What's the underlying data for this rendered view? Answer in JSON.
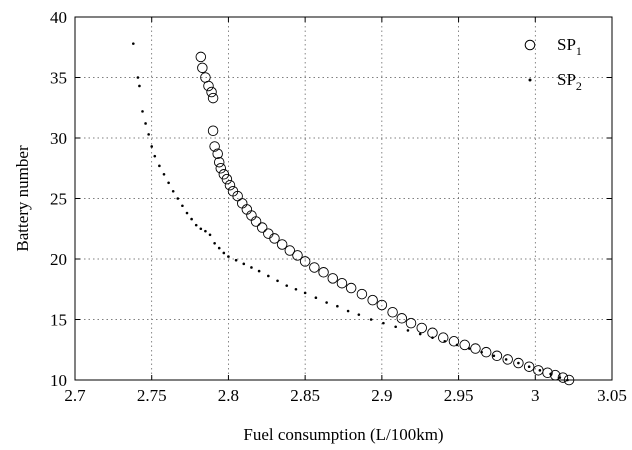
{
  "chart_data": {
    "type": "scatter",
    "title": "",
    "xlabel": "Fuel consumption (L/100km)",
    "ylabel": "Battery number",
    "xlim": [
      2.7,
      3.05
    ],
    "ylim": [
      10,
      40
    ],
    "xticks": [
      "2.7",
      "2.75",
      "2.8",
      "2.85",
      "2.9",
      "2.95",
      "3",
      "3.05"
    ],
    "yticks": [
      "10",
      "15",
      "20",
      "25",
      "30",
      "35",
      "40"
    ],
    "grid": true,
    "legend_position": "top-right",
    "series": [
      {
        "name": "SP1",
        "name_main": "SP",
        "name_sub": "1",
        "marker": "open-circle",
        "color": "#000000",
        "points": [
          [
            2.782,
            36.7
          ],
          [
            2.783,
            35.8
          ],
          [
            2.785,
            35.0
          ],
          [
            2.787,
            34.3
          ],
          [
            2.789,
            33.8
          ],
          [
            2.79,
            33.3
          ],
          [
            2.79,
            30.6
          ],
          [
            2.791,
            29.3
          ],
          [
            2.793,
            28.7
          ],
          [
            2.794,
            28.0
          ],
          [
            2.795,
            27.5
          ],
          [
            2.797,
            27.0
          ],
          [
            2.799,
            26.6
          ],
          [
            2.801,
            26.1
          ],
          [
            2.803,
            25.6
          ],
          [
            2.806,
            25.2
          ],
          [
            2.809,
            24.6
          ],
          [
            2.812,
            24.1
          ],
          [
            2.815,
            23.6
          ],
          [
            2.818,
            23.1
          ],
          [
            2.822,
            22.6
          ],
          [
            2.826,
            22.1
          ],
          [
            2.83,
            21.7
          ],
          [
            2.835,
            21.2
          ],
          [
            2.84,
            20.7
          ],
          [
            2.845,
            20.3
          ],
          [
            2.85,
            19.8
          ],
          [
            2.856,
            19.3
          ],
          [
            2.862,
            18.9
          ],
          [
            2.868,
            18.4
          ],
          [
            2.874,
            18.0
          ],
          [
            2.88,
            17.6
          ],
          [
            2.887,
            17.1
          ],
          [
            2.894,
            16.6
          ],
          [
            2.9,
            16.2
          ],
          [
            2.907,
            15.6
          ],
          [
            2.913,
            15.1
          ],
          [
            2.919,
            14.7
          ],
          [
            2.926,
            14.3
          ],
          [
            2.933,
            13.9
          ],
          [
            2.94,
            13.5
          ],
          [
            2.947,
            13.2
          ],
          [
            2.954,
            12.9
          ],
          [
            2.961,
            12.6
          ],
          [
            2.968,
            12.3
          ],
          [
            2.975,
            12.0
          ],
          [
            2.982,
            11.7
          ],
          [
            2.989,
            11.4
          ],
          [
            2.996,
            11.1
          ],
          [
            3.002,
            10.8
          ],
          [
            3.008,
            10.6
          ],
          [
            3.013,
            10.4
          ],
          [
            3.018,
            10.2
          ],
          [
            3.022,
            10.0
          ]
        ]
      },
      {
        "name": "SP2",
        "name_main": "SP",
        "name_sub": "2",
        "marker": "dot",
        "color": "#000000",
        "points": [
          [
            2.738,
            37.8
          ],
          [
            2.741,
            35.0
          ],
          [
            2.742,
            34.3
          ],
          [
            2.744,
            32.2
          ],
          [
            2.746,
            31.2
          ],
          [
            2.748,
            30.3
          ],
          [
            2.75,
            29.3
          ],
          [
            2.752,
            28.5
          ],
          [
            2.755,
            27.7
          ],
          [
            2.758,
            27.0
          ],
          [
            2.761,
            26.3
          ],
          [
            2.764,
            25.6
          ],
          [
            2.767,
            25.0
          ],
          [
            2.77,
            24.4
          ],
          [
            2.773,
            23.8
          ],
          [
            2.776,
            23.3
          ],
          [
            2.779,
            22.8
          ],
          [
            2.782,
            22.5
          ],
          [
            2.785,
            22.3
          ],
          [
            2.788,
            22.0
          ],
          [
            2.791,
            21.3
          ],
          [
            2.794,
            20.9
          ],
          [
            2.797,
            20.5
          ],
          [
            2.8,
            20.2
          ],
          [
            2.805,
            19.9
          ],
          [
            2.81,
            19.6
          ],
          [
            2.815,
            19.3
          ],
          [
            2.82,
            19.0
          ],
          [
            2.826,
            18.6
          ],
          [
            2.832,
            18.2
          ],
          [
            2.838,
            17.8
          ],
          [
            2.844,
            17.5
          ],
          [
            2.85,
            17.2
          ],
          [
            2.857,
            16.8
          ],
          [
            2.864,
            16.4
          ],
          [
            2.871,
            16.1
          ],
          [
            2.878,
            15.7
          ],
          [
            2.885,
            15.4
          ],
          [
            2.893,
            15.0
          ],
          [
            2.901,
            14.7
          ],
          [
            2.909,
            14.4
          ],
          [
            2.917,
            14.1
          ],
          [
            2.925,
            13.8
          ],
          [
            2.933,
            13.5
          ],
          [
            2.941,
            13.2
          ],
          [
            2.949,
            12.9
          ],
          [
            2.957,
            12.6
          ],
          [
            2.965,
            12.3
          ],
          [
            2.973,
            12.0
          ],
          [
            2.981,
            11.7
          ],
          [
            2.989,
            11.4
          ],
          [
            2.996,
            11.1
          ],
          [
            3.003,
            10.8
          ],
          [
            3.01,
            10.5
          ],
          [
            3.016,
            10.2
          ],
          [
            3.021,
            10.0
          ]
        ]
      }
    ]
  }
}
